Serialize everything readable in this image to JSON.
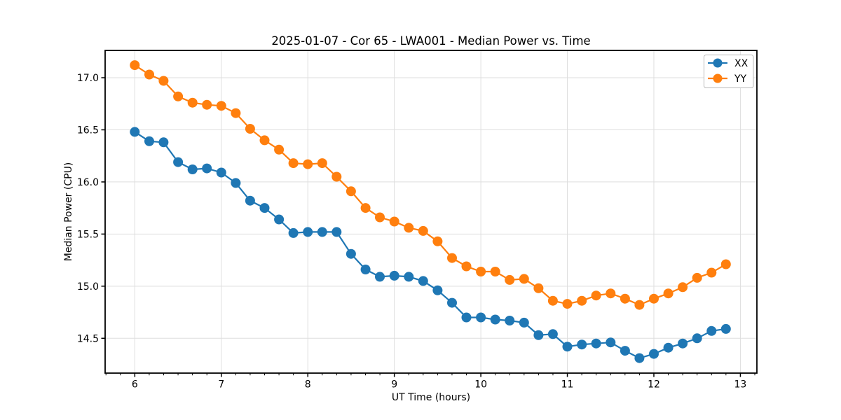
{
  "figure": {
    "title": "2025-01-07 - Cor 65 - LWA001 - Median Power vs. Time"
  },
  "chart_data": {
    "type": "line",
    "title": "2025-01-07 - Cor 65 - LWA001 - Median Power vs. Time",
    "xlabel": "UT Time (hours)",
    "ylabel": "Median Power (CPU)",
    "x": [
      6.0,
      6.167,
      6.333,
      6.5,
      6.667,
      6.833,
      7.0,
      7.167,
      7.333,
      7.5,
      7.667,
      7.833,
      8.0,
      8.167,
      8.333,
      8.5,
      8.667,
      8.833,
      9.0,
      9.167,
      9.333,
      9.5,
      9.667,
      9.833,
      10.0,
      10.167,
      10.333,
      10.5,
      10.667,
      10.833,
      11.0,
      11.167,
      11.333,
      11.5,
      11.667,
      11.833,
      12.0,
      12.167,
      12.333,
      12.5,
      12.667,
      12.833
    ],
    "series": [
      {
        "name": "XX",
        "color": "#1f77b4",
        "values": [
          16.48,
          16.39,
          16.38,
          16.19,
          16.12,
          16.13,
          16.09,
          15.99,
          15.82,
          15.75,
          15.64,
          15.51,
          15.52,
          15.52,
          15.52,
          15.31,
          15.16,
          15.09,
          15.1,
          15.09,
          15.05,
          14.96,
          14.84,
          14.7,
          14.7,
          14.68,
          14.67,
          14.65,
          14.53,
          14.54,
          14.42,
          14.44,
          14.45,
          14.46,
          14.38,
          14.31,
          14.35,
          14.41,
          14.45,
          14.5,
          14.57,
          14.59
        ]
      },
      {
        "name": "YY",
        "color": "#ff7f0e",
        "values": [
          17.12,
          17.03,
          16.97,
          16.82,
          16.76,
          16.74,
          16.73,
          16.66,
          16.51,
          16.4,
          16.31,
          16.18,
          16.17,
          16.18,
          16.05,
          15.91,
          15.75,
          15.66,
          15.62,
          15.56,
          15.53,
          15.43,
          15.27,
          15.19,
          15.14,
          15.14,
          15.06,
          15.07,
          14.98,
          14.86,
          14.83,
          14.86,
          14.91,
          14.93,
          14.88,
          14.82,
          14.88,
          14.93,
          14.99,
          15.08,
          15.13,
          15.21
        ]
      }
    ],
    "xlim": [
      5.657,
      13.191
    ],
    "ylim": [
      14.166,
      17.262
    ],
    "xticks": {
      "values": [
        6,
        7,
        8,
        9,
        10,
        11,
        12,
        13
      ],
      "labels": [
        "6",
        "7",
        "8",
        "9",
        "10",
        "11",
        "12",
        "13"
      ]
    },
    "yticks": {
      "values": [
        14.5,
        15.0,
        15.5,
        16.0,
        16.5,
        17.0
      ],
      "labels": [
        "14.5",
        "15.0",
        "15.5",
        "16.0",
        "16.5",
        "17.0"
      ]
    },
    "minor_xtick_step": 0.166667,
    "grid": true,
    "grid_color": "#dedede",
    "background": "#ffffff",
    "marker": "circle",
    "legend": {
      "position": "upper right"
    }
  }
}
